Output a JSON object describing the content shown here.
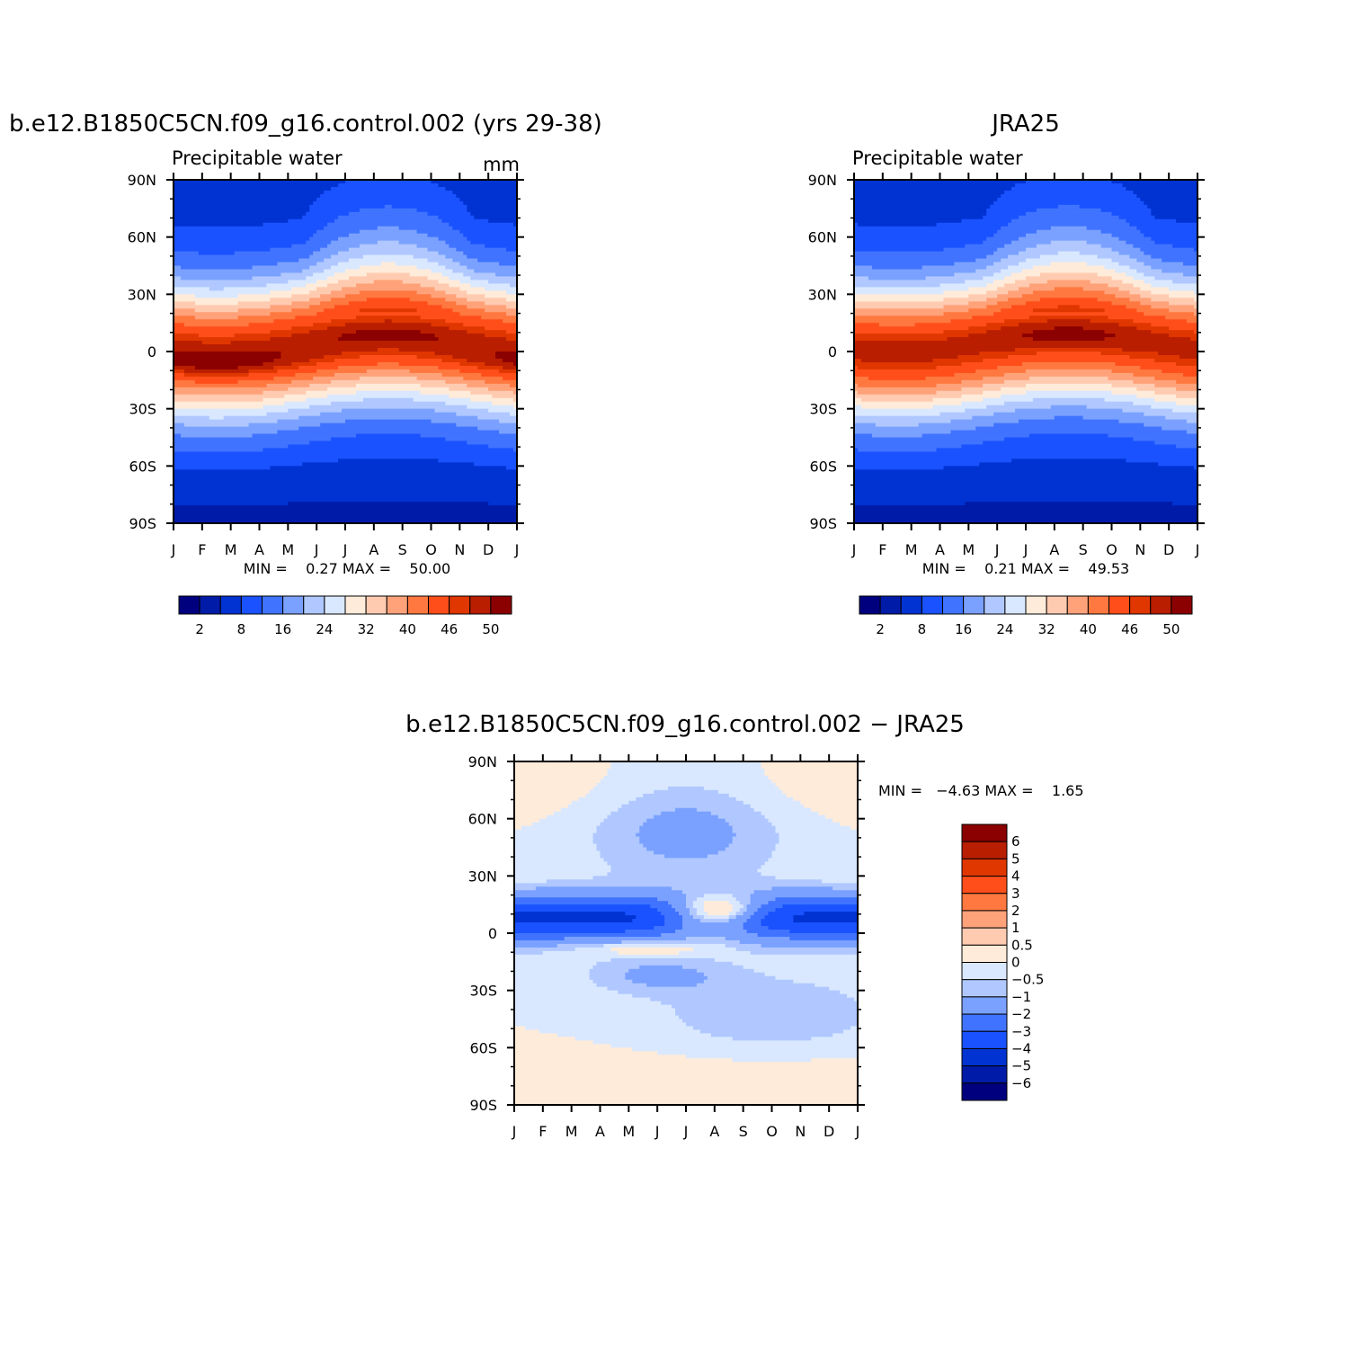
{
  "chart_data": [
    {
      "type": "heatmap",
      "id": "model",
      "title": "b.e12.B1850C5CN.f09_g16.control.002 (yrs 29-38)",
      "subtitle": "Precipitable water",
      "units": "mm",
      "stats": "MIN =    0.27 MAX =    50.00",
      "x_ticks": [
        "J",
        "F",
        "M",
        "A",
        "M",
        "J",
        "J",
        "A",
        "S",
        "O",
        "N",
        "D",
        "J"
      ],
      "y_ticks": [
        "90N",
        "60N",
        "30N",
        "0",
        "30S",
        "60S",
        "90S"
      ],
      "colorbar_labels": [
        "2",
        "8",
        "16",
        "24",
        "32",
        "40",
        "46",
        "50"
      ],
      "min": 0.27,
      "max": 50.0
    },
    {
      "type": "heatmap",
      "id": "obs",
      "title": "JRA25",
      "subtitle": "Precipitable water",
      "stats": "MIN =    0.21 MAX =    49.53",
      "x_ticks": [
        "J",
        "F",
        "M",
        "A",
        "M",
        "J",
        "J",
        "A",
        "S",
        "O",
        "N",
        "D",
        "J"
      ],
      "y_ticks": [
        "90N",
        "60N",
        "30N",
        "0",
        "30S",
        "60S",
        "90S"
      ],
      "colorbar_labels": [
        "2",
        "8",
        "16",
        "24",
        "32",
        "40",
        "46",
        "50"
      ],
      "min": 0.21,
      "max": 49.53
    },
    {
      "type": "heatmap",
      "id": "diff",
      "title": "b.e12.B1850C5CN.f09_g16.control.002 − JRA25",
      "stats": "MIN =   −4.63 MAX =    1.65",
      "x_ticks": [
        "J",
        "F",
        "M",
        "A",
        "M",
        "J",
        "J",
        "A",
        "S",
        "O",
        "N",
        "D",
        "J"
      ],
      "y_ticks": [
        "90N",
        "60N",
        "30N",
        "0",
        "30S",
        "60S",
        "90S"
      ],
      "colorbar_labels": [
        "6",
        "5",
        "4",
        "3",
        "2",
        "1",
        "0.5",
        "0",
        "−0.5",
        "−1",
        "−2",
        "−3",
        "−4",
        "−5",
        "−6"
      ],
      "min": -4.63,
      "max": 1.65
    }
  ],
  "palette": [
    "#00007f",
    "#001ba8",
    "#0033d2",
    "#1a52ff",
    "#4073ff",
    "#7aa1ff",
    "#b0c8ff",
    "#d9e8ff",
    "#ffebd9",
    "#ffcbb0",
    "#ffa27a",
    "#ff7840",
    "#ff4e1a",
    "#e03600",
    "#b91e00",
    "#8b0000"
  ]
}
